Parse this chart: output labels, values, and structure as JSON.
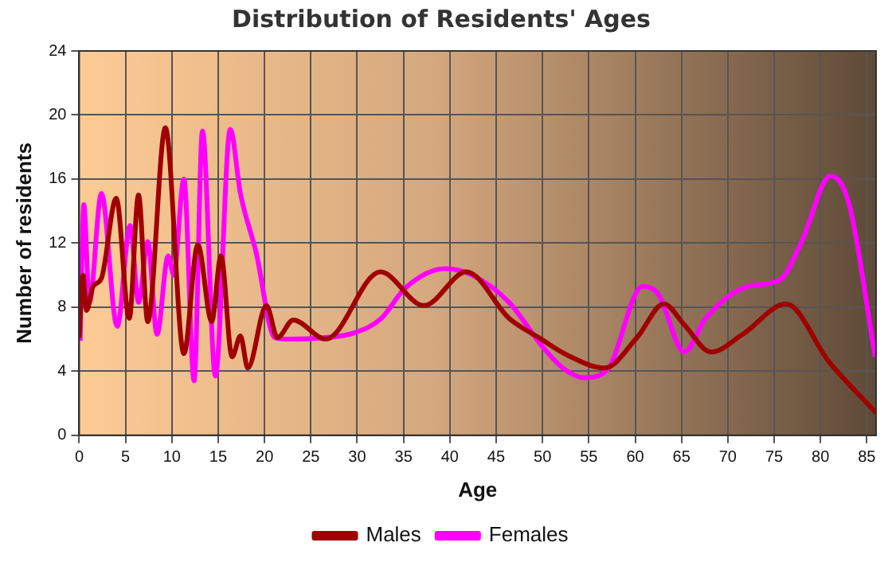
{
  "chart_data": {
    "type": "line",
    "title": "Distribution of Residents' Ages",
    "xlabel": "Age",
    "ylabel": "Number of residents",
    "xlim": [
      0,
      86
    ],
    "xticks": [
      0,
      5,
      10,
      15,
      20,
      25,
      30,
      35,
      40,
      45,
      50,
      55,
      60,
      65,
      70,
      75,
      80,
      85
    ],
    "ylim": [
      0,
      24
    ],
    "yticks": [
      0,
      4,
      8,
      12,
      16,
      20,
      24
    ],
    "grid": true,
    "legend": "bottom",
    "marker": "none",
    "line_style": "solid",
    "series": [
      {
        "name": "Males",
        "color": "#a00000",
        "x": [
          0,
          0.4,
          0.8,
          1.5,
          2.4,
          4,
          5.4,
          6.4,
          7.4,
          9.3,
          11.3,
          12.8,
          14.3,
          15.3,
          16.5,
          17.4,
          18.2,
          20.2,
          21.4,
          23.1,
          26.6,
          32.5,
          37.2,
          41.8,
          46.4,
          49.6,
          52.7,
          56.7,
          60.2,
          63.1,
          65.3,
          68.2,
          71.6,
          76.3,
          80.9,
          86
        ],
        "values": [
          6.1,
          10,
          7.8,
          9.3,
          9.8,
          14.8,
          7.3,
          15,
          7.1,
          19.2,
          5.1,
          11.9,
          7.1,
          11.2,
          4.9,
          6.2,
          4.2,
          8.1,
          6.1,
          7.2,
          6,
          10.2,
          8.1,
          10.2,
          7.3,
          6.1,
          5,
          4.2,
          6.1,
          8.2,
          6.9,
          5.2,
          6.3,
          8.2,
          4.6,
          1.4
        ]
      },
      {
        "name": "Females",
        "color": "#ff00ff",
        "x": [
          0.1,
          0.5,
          1.1,
          2.4,
          4.1,
          5.5,
          6.4,
          7.4,
          8.4,
          9.6,
          10.2,
          11.3,
          12.4,
          13.3,
          14.7,
          16.3,
          17.4,
          19.1,
          21.1,
          22.8,
          26.5,
          29.7,
          32.6,
          35.2,
          39.5,
          42.4,
          46.4,
          49.9,
          52.2,
          54.5,
          57,
          60.8,
          62.5,
          65.3,
          67.6,
          72.2,
          75.6,
          77.9,
          81.1,
          83.1,
          85.9
        ],
        "values": [
          5.9,
          14.4,
          8.3,
          15.1,
          6.8,
          13.1,
          8.3,
          12.1,
          6.3,
          11.2,
          10,
          16,
          3.4,
          19,
          3.7,
          19.1,
          15.1,
          11.4,
          6.1,
          6,
          6.1,
          6.4,
          7.3,
          9.2,
          10.4,
          10,
          8.3,
          5.6,
          4.2,
          3.6,
          4.1,
          9.3,
          8.8,
          5.2,
          7.3,
          9.3,
          9.7,
          12,
          16.2,
          14.4,
          4.9
        ]
      }
    ]
  }
}
